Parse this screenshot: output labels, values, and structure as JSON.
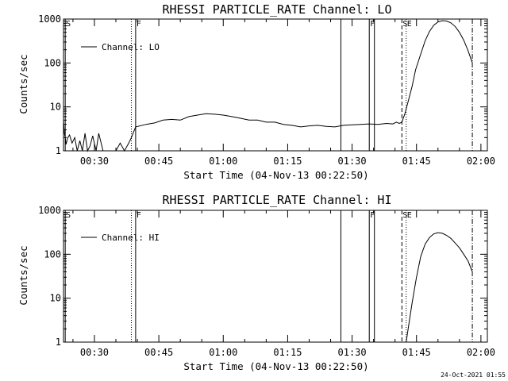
{
  "footer_timestamp": "24-Oct-2021 01:55",
  "chart_data": [
    {
      "type": "line",
      "title": "RHESSI PARTICLE_RATE Channel: LO",
      "xlabel": "Start Time (04-Nov-13 00:22:50)",
      "ylabel": "Counts/sec",
      "legend_label": "Channel: LO",
      "legend_position": "top-left",
      "y_scale": "log",
      "ylim": [
        1,
        1000
      ],
      "xlim_minutes": [
        22.8,
        121.5
      ],
      "y_ticks": [
        {
          "value": 1,
          "label": "1"
        },
        {
          "value": 10,
          "label": "10"
        },
        {
          "value": 100,
          "label": "100"
        },
        {
          "value": 1000,
          "label": "1000"
        }
      ],
      "x_ticks": [
        {
          "value": 30,
          "label": "00:30"
        },
        {
          "value": 45,
          "label": "00:45"
        },
        {
          "value": 60,
          "label": "01:00"
        },
        {
          "value": 75,
          "label": "01:15"
        },
        {
          "value": 90,
          "label": "01:30"
        },
        {
          "value": 105,
          "label": "01:45"
        },
        {
          "value": 120,
          "label": "02:00"
        }
      ],
      "vertical_markers": [
        {
          "x": 23.2,
          "style": "solid",
          "label": "S"
        },
        {
          "x": 38.6,
          "style": "dotted",
          "label": ""
        },
        {
          "x": 39.6,
          "style": "solid",
          "label": "F"
        },
        {
          "x": 87.4,
          "style": "solid",
          "label": ""
        },
        {
          "x": 94.0,
          "style": "solid",
          "label": "F"
        },
        {
          "x": 95.2,
          "style": "solid",
          "label": ""
        },
        {
          "x": 101.6,
          "style": "dashed",
          "label": "S"
        },
        {
          "x": 102.6,
          "style": "dotted",
          "label": "E"
        },
        {
          "x": 118.0,
          "style": "dashdot",
          "label": ""
        }
      ],
      "series": [
        {
          "name": "Channel: LO",
          "x": [
            22.8,
            23.0,
            23.2,
            23.4,
            23.8,
            24.2,
            24.8,
            25.4,
            26.0,
            26.6,
            27.2,
            27.8,
            28.4,
            29.0,
            29.6,
            30.4,
            31.0,
            32.0,
            33.0,
            34.0,
            35.0,
            36.0,
            37.0,
            38.0,
            38.6,
            39.6,
            42,
            44,
            46,
            48,
            50,
            52,
            54,
            56,
            58,
            60,
            62,
            64,
            66,
            68,
            70,
            72,
            74,
            76,
            78,
            80,
            82,
            84,
            86,
            88,
            90,
            92,
            94,
            96,
            98,
            99.5,
            100.3,
            101.0,
            101.6,
            102.3,
            103.2,
            104.0,
            104.8,
            106,
            107,
            108,
            109,
            110,
            111,
            112,
            113,
            114,
            115,
            116,
            117,
            118
          ],
          "values": [
            5,
            2.5,
            2,
            1.4,
            2,
            2.3,
            1.5,
            2,
            1,
            1.7,
            1,
            2.5,
            1,
            1.3,
            2.2,
            1,
            2.5,
            1,
            1,
            1,
            1,
            1.5,
            1,
            1.5,
            2,
            3.5,
            4.0,
            4.3,
            5.0,
            5.2,
            5.0,
            6.0,
            6.5,
            7.0,
            6.8,
            6.5,
            6.0,
            5.5,
            5.0,
            5.0,
            4.5,
            4.5,
            4.0,
            3.8,
            3.5,
            3.7,
            3.8,
            3.6,
            3.5,
            3.8,
            3.9,
            4.0,
            4.1,
            4.0,
            4.2,
            4.1,
            4.5,
            4.2,
            4.5,
            7,
            15,
            30,
            70,
            160,
            320,
            520,
            720,
            860,
            920,
            900,
            820,
            680,
            500,
            330,
            190,
            100
          ]
        }
      ]
    },
    {
      "type": "line",
      "title": "RHESSI PARTICLE_RATE Channel: HI",
      "xlabel": "Start Time (04-Nov-13 00:22:50)",
      "ylabel": "Counts/sec",
      "legend_label": "Channel: HI",
      "legend_position": "top-left",
      "y_scale": "log",
      "ylim": [
        1,
        1000
      ],
      "xlim_minutes": [
        22.8,
        121.5
      ],
      "y_ticks": [
        {
          "value": 1,
          "label": "1"
        },
        {
          "value": 10,
          "label": "10"
        },
        {
          "value": 100,
          "label": "100"
        },
        {
          "value": 1000,
          "label": "1000"
        }
      ],
      "x_ticks": [
        {
          "value": 30,
          "label": "00:30"
        },
        {
          "value": 45,
          "label": "00:45"
        },
        {
          "value": 60,
          "label": "01:00"
        },
        {
          "value": 75,
          "label": "01:15"
        },
        {
          "value": 90,
          "label": "01:30"
        },
        {
          "value": 105,
          "label": "01:45"
        },
        {
          "value": 120,
          "label": "02:00"
        }
      ],
      "vertical_markers": [
        {
          "x": 23.2,
          "style": "solid",
          "label": "S"
        },
        {
          "x": 38.6,
          "style": "dotted",
          "label": ""
        },
        {
          "x": 39.6,
          "style": "solid",
          "label": "F"
        },
        {
          "x": 87.4,
          "style": "solid",
          "label": ""
        },
        {
          "x": 94.0,
          "style": "solid",
          "label": "F"
        },
        {
          "x": 95.2,
          "style": "solid",
          "label": ""
        },
        {
          "x": 101.6,
          "style": "dashed",
          "label": "S"
        },
        {
          "x": 102.6,
          "style": "dotted",
          "label": "E"
        },
        {
          "x": 118.0,
          "style": "dashdot",
          "label": ""
        }
      ],
      "series": [
        {
          "name": "Channel: HI",
          "x": [
            102.6,
            103.2,
            104.0,
            105.0,
            106.0,
            107.0,
            108.0,
            109.0,
            110.0,
            111.0,
            112.0,
            113.0,
            114.0,
            115.0,
            116.0,
            117.0,
            118.0
          ],
          "values": [
            1,
            2.5,
            8,
            30,
            90,
            170,
            240,
            290,
            310,
            300,
            270,
            230,
            180,
            140,
            100,
            70,
            40
          ]
        }
      ]
    }
  ]
}
